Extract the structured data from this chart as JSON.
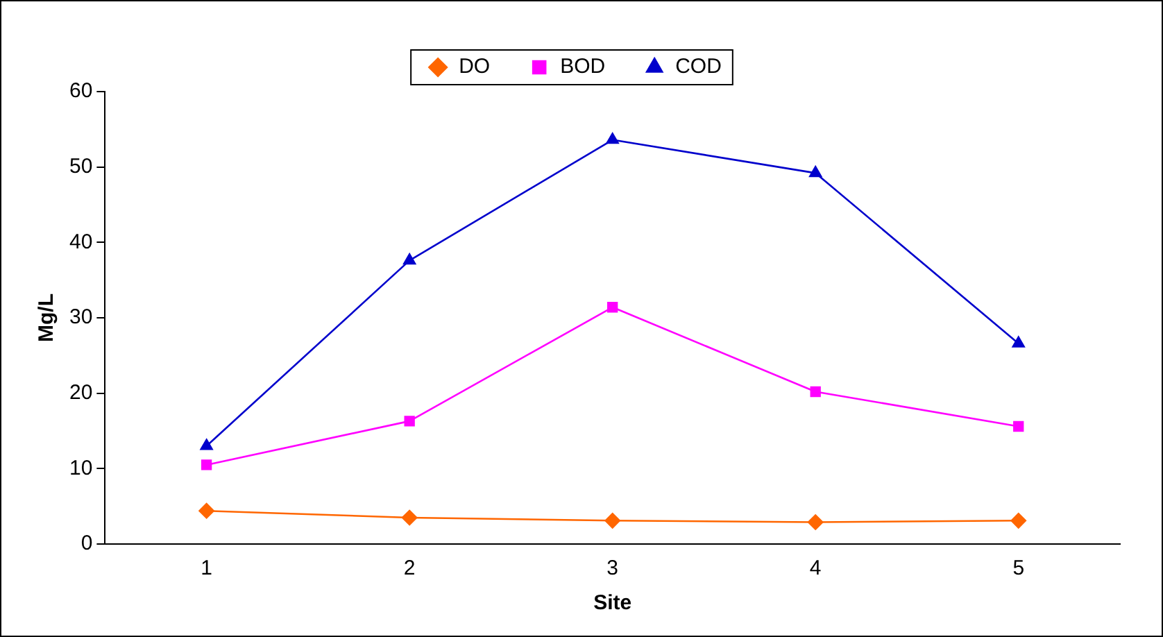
{
  "chart_data": {
    "type": "line",
    "xlabel": "Site",
    "ylabel": "Mg/L",
    "categories": [
      "1",
      "2",
      "3",
      "4",
      "5"
    ],
    "series": [
      {
        "name": "DO",
        "color": "#ff6600",
        "marker": "diamond",
        "values": [
          4.4,
          3.5,
          3.1,
          2.9,
          3.1
        ]
      },
      {
        "name": "BOD",
        "color": "#ff00ff",
        "marker": "square",
        "values": [
          10.5,
          16.3,
          31.4,
          20.2,
          15.6
        ]
      },
      {
        "name": "COD",
        "color": "#0000cc",
        "marker": "triangle",
        "values": [
          13.0,
          37.6,
          53.6,
          49.2,
          26.6
        ]
      }
    ],
    "ylim": [
      0,
      60
    ],
    "yticks": [
      0,
      10,
      20,
      30,
      40,
      50,
      60
    ],
    "grid": false,
    "legend": "top"
  }
}
